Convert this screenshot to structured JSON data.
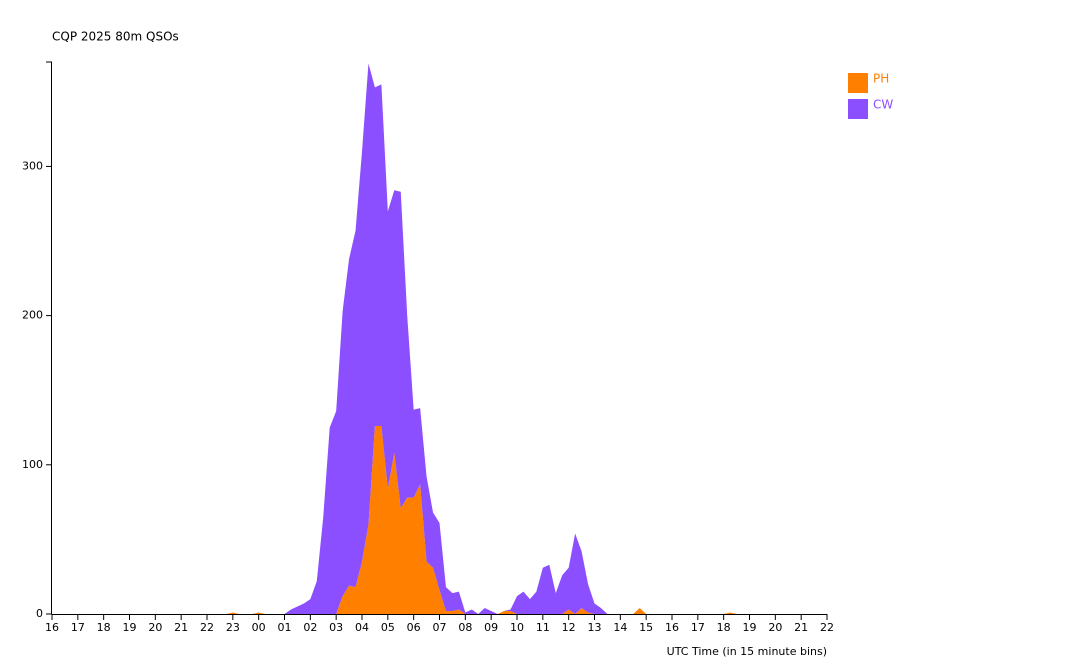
{
  "chart_data": {
    "type": "stacked-area",
    "title": "CQP 2025 80m QSOs",
    "x_label": "UTC Time (in 15 minute bins)",
    "x": [
      0,
      0.25,
      0.5,
      0.75,
      1,
      1.25,
      1.5,
      1.75,
      2,
      2.25,
      2.5,
      2.75,
      3,
      3.25,
      3.5,
      3.75,
      4,
      4.25,
      4.5,
      4.75,
      5,
      5.25,
      5.5,
      5.75,
      6,
      6.25,
      6.5,
      6.75,
      7,
      7.25,
      7.5,
      7.75,
      8,
      8.25,
      8.5,
      8.75,
      9,
      9.25,
      9.5,
      9.75,
      10,
      10.25,
      10.5,
      10.75,
      11,
      11.25,
      11.5,
      11.75,
      12,
      12.25,
      12.5,
      12.75,
      13,
      13.25,
      13.5,
      13.75,
      14,
      14.25,
      14.5,
      14.75,
      15,
      15.25,
      15.5,
      15.75,
      16,
      16.25,
      16.5,
      16.75,
      17,
      17.25,
      17.5,
      17.75,
      18,
      18.25,
      18.5,
      18.75,
      19,
      19.25,
      19.5,
      19.75,
      20,
      20.25,
      20.5,
      20.75,
      21,
      21.25,
      21.5,
      21.75,
      22,
      22.25,
      22.5,
      22.75,
      23,
      23.25,
      23.5,
      23.75,
      24,
      24.25,
      24.5,
      24.75,
      25,
      25.25,
      25.5,
      25.75,
      26,
      26.25,
      26.5,
      26.75,
      27,
      27.25,
      27.5,
      27.75,
      28,
      28.25,
      28.5,
      28.75,
      29,
      29.25,
      29.5,
      29.75,
      30
    ],
    "series": [
      {
        "name": "PH",
        "color": "#ff8000",
        "values": [
          0,
          0,
          0,
          0,
          0,
          0,
          0,
          0,
          0,
          0,
          0,
          0,
          0,
          0,
          0,
          0,
          0,
          0,
          0,
          0,
          0,
          0,
          0,
          0,
          0,
          0,
          0,
          0,
          1,
          0,
          0,
          0,
          1,
          0,
          0,
          0,
          0,
          0,
          0,
          0,
          0,
          0,
          0,
          0,
          0,
          12,
          19,
          18,
          35,
          60,
          126,
          126,
          84,
          108,
          71,
          78,
          78,
          87,
          35,
          31,
          16,
          2,
          2,
          3,
          0,
          0,
          0,
          0,
          0,
          0,
          2,
          2,
          0,
          0,
          0,
          0,
          0,
          0,
          0,
          0,
          3,
          0,
          4,
          1,
          0,
          0,
          0,
          0,
          0,
          0,
          0,
          4,
          0,
          0,
          0,
          0,
          0,
          0,
          0,
          0,
          0,
          0,
          0,
          0,
          0,
          1,
          0,
          0,
          0,
          0,
          0,
          0,
          0,
          0,
          0,
          0,
          0,
          0,
          0,
          0,
          0
        ]
      },
      {
        "name": "CW",
        "color": "#8c4fff",
        "values": [
          0,
          0,
          0,
          0,
          0,
          0,
          0,
          0,
          0,
          0,
          0,
          0,
          0,
          0,
          0,
          0,
          0,
          0,
          0,
          0,
          0,
          0,
          0,
          0,
          0,
          0,
          0,
          0,
          0,
          0,
          0,
          0,
          0,
          0,
          0,
          0,
          0,
          3,
          5,
          7,
          10,
          22,
          65,
          125,
          136,
          191,
          219,
          239,
          275,
          309,
          227,
          229,
          186,
          176,
          212,
          122,
          59,
          51,
          57,
          37,
          45,
          16,
          12,
          12,
          1,
          3,
          0,
          4,
          2,
          0,
          0,
          1,
          12,
          15,
          10,
          15,
          31,
          33,
          14,
          26,
          28,
          54,
          38,
          19,
          7,
          4,
          0,
          0,
          0,
          0,
          0,
          0,
          0,
          0,
          0,
          0,
          0,
          0,
          0,
          0,
          0,
          0,
          0,
          0,
          0,
          0,
          0,
          0,
          0,
          0,
          0,
          0,
          0,
          0,
          0,
          0,
          0,
          0,
          0,
          0,
          0
        ]
      }
    ],
    "xlim": [
      0,
      30
    ],
    "xticks": [
      {
        "value": 0,
        "label": "16"
      },
      {
        "value": 1,
        "label": "17"
      },
      {
        "value": 2,
        "label": "18"
      },
      {
        "value": 3,
        "label": "19"
      },
      {
        "value": 4,
        "label": "20"
      },
      {
        "value": 5,
        "label": "21"
      },
      {
        "value": 6,
        "label": "22"
      },
      {
        "value": 7,
        "label": "23"
      },
      {
        "value": 8,
        "label": "00"
      },
      {
        "value": 9,
        "label": "01"
      },
      {
        "value": 10,
        "label": "02"
      },
      {
        "value": 11,
        "label": "03"
      },
      {
        "value": 12,
        "label": "04"
      },
      {
        "value": 13,
        "label": "05"
      },
      {
        "value": 14,
        "label": "06"
      },
      {
        "value": 15,
        "label": "07"
      },
      {
        "value": 16,
        "label": "08"
      },
      {
        "value": 17,
        "label": "09"
      },
      {
        "value": 18,
        "label": "10"
      },
      {
        "value": 19,
        "label": "11"
      },
      {
        "value": 20,
        "label": "12"
      },
      {
        "value": 21,
        "label": "13"
      },
      {
        "value": 22,
        "label": "14"
      },
      {
        "value": 23,
        "label": "15"
      },
      {
        "value": 24,
        "label": "16"
      },
      {
        "value": 25,
        "label": "17"
      },
      {
        "value": 26,
        "label": "18"
      },
      {
        "value": 27,
        "label": "19"
      },
      {
        "value": 28,
        "label": "20"
      },
      {
        "value": 29,
        "label": "21"
      },
      {
        "value": 30,
        "label": "22"
      }
    ],
    "ylim": [
      0,
      370
    ],
    "yticks": [
      0,
      100,
      200,
      300
    ],
    "grid": false,
    "legend": "top-right"
  }
}
